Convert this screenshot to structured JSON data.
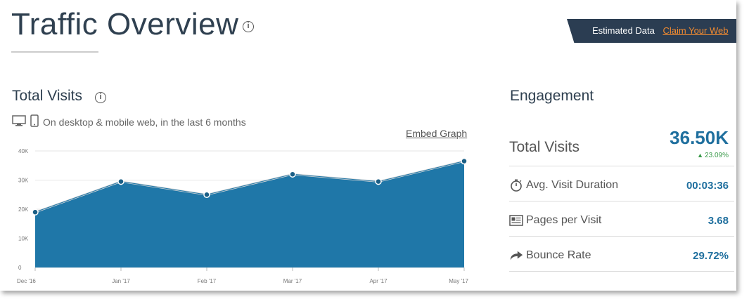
{
  "header": {
    "title": "Traffic Overview",
    "info_icon": "info-icon",
    "estimated_label": "Estimated Data",
    "claim_link": "Claim Your Web"
  },
  "total_visits": {
    "title": "Total Visits",
    "device_text": "On desktop & mobile web, in the last 6 months",
    "embed_link": "Embed Graph"
  },
  "chart_data": {
    "type": "area",
    "title": "",
    "xlabel": "",
    "ylabel": "",
    "categories": [
      "Dec '16",
      "Jan '17",
      "Feb '17",
      "Mar '17",
      "Apr '17",
      "May '17"
    ],
    "values": [
      19000,
      29500,
      25000,
      32000,
      29500,
      36500
    ],
    "ylim": [
      0,
      40000
    ],
    "yticks": [
      "0",
      "10K",
      "20K",
      "30K",
      "40K"
    ],
    "grid": true,
    "color": "#1f77a8"
  },
  "engagement": {
    "title": "Engagement",
    "total_visits_label": "Total Visits",
    "total_visits_value": "36.50K",
    "total_visits_change": "23.09%",
    "metrics": [
      {
        "icon": "stopwatch-icon",
        "label": "Avg. Visit Duration",
        "value": "00:03:36"
      },
      {
        "icon": "pages-icon",
        "label": "Pages per Visit",
        "value": "3.68"
      },
      {
        "icon": "bounce-arrow-icon",
        "label": "Bounce Rate",
        "value": "29.72%"
      }
    ]
  },
  "colors": {
    "accent": "#1f6f9e",
    "banner": "#2b3d52",
    "link": "#f28b30",
    "positive": "#3a9a4a"
  }
}
